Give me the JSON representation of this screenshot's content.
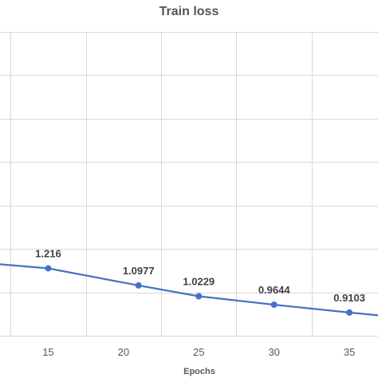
{
  "chart_data": {
    "type": "line",
    "title": "Train loss",
    "xlabel": "Epochs",
    "ylabel": "",
    "x_ticks": [
      15,
      20,
      25,
      30,
      35
    ],
    "xlim": [
      11.8,
      36.9
    ],
    "ylim": [
      0.75,
      2.85
    ],
    "grid": true,
    "series": [
      {
        "color": "#4472c4",
        "points": [
          {
            "x": 10,
            "y": 1.26,
            "label": ""
          },
          {
            "x": 15,
            "y": 1.216,
            "label": "1.216"
          },
          {
            "x": 21,
            "y": 1.0977,
            "label": "1.0977"
          },
          {
            "x": 25,
            "y": 1.0229,
            "label": "1.0229"
          },
          {
            "x": 30,
            "y": 0.9644,
            "label": "0.9644"
          },
          {
            "x": 35,
            "y": 0.9103,
            "label": "0.9103"
          },
          {
            "x": 38,
            "y": 0.88,
            "label": ""
          }
        ]
      }
    ]
  }
}
